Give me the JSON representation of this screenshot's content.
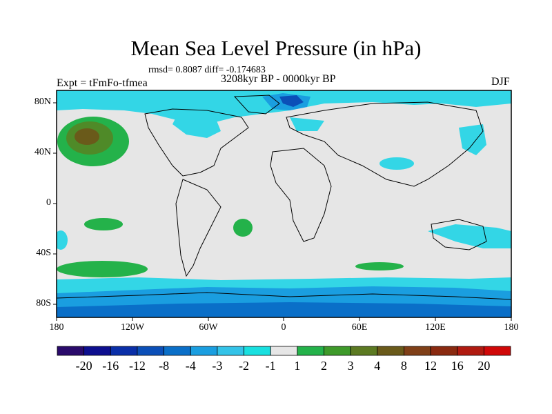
{
  "title": "Mean Sea Level Pressure (in hPa)",
  "stats": "rmsd= 0.8087 diff= -0.174683",
  "experiment": "Expt = tFmFo-tfmea",
  "period": "3208kyr BP - 0000kyr BP",
  "season": "DJF",
  "lat_labels": [
    "80N",
    "40N",
    "0",
    "40S",
    "80S"
  ],
  "lon_labels": [
    "180",
    "120W",
    "60W",
    "0",
    "60E",
    "120E",
    "180"
  ],
  "colorbar": {
    "colors": [
      "#2a0a6b",
      "#0d0f8f",
      "#0a2fa8",
      "#0b4fb8",
      "#0a6fc8",
      "#1a9ee0",
      "#33c3e8",
      "#19e0e0",
      "#e6e6e6",
      "#24b24a",
      "#3e9a2a",
      "#5c7a22",
      "#6a5a1a",
      "#804018",
      "#8a2a10",
      "#b01a10",
      "#d00808"
    ],
    "labels": [
      "-20",
      "-16",
      "-12",
      "-8",
      "-4",
      "-3",
      "-2",
      "-1",
      "1",
      "2",
      "3",
      "4",
      "8",
      "12",
      "16",
      "20"
    ]
  }
}
